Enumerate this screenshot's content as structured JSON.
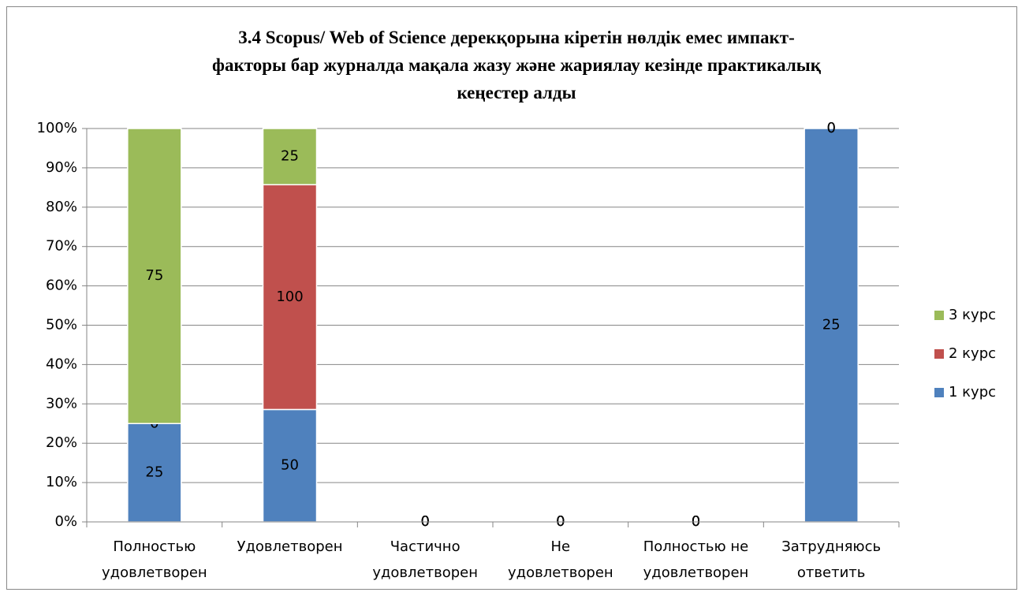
{
  "chart_data": {
    "type": "bar",
    "percent_stacked": true,
    "title": "3.4 Scopus/ Web of Science дерекқорына кіретін нөлдік емес импакт-\nфакторы бар журналда мақала жазу және жариялау кезінде практикалық\nкеңестер алды",
    "categories": [
      "Полностью\nудовлетворен",
      "Удовлетворен",
      "Частично\nудовлетворен",
      "Не\nудовлетворен",
      "Полностью не\nудовлетворен",
      "Затрудняюсь\nответить"
    ],
    "series": [
      {
        "name": "1 курс",
        "color": "#4f81bd",
        "values": [
          25,
          50,
          0,
          0,
          0,
          25
        ]
      },
      {
        "name": "2 курс",
        "color": "#c0504d",
        "values": [
          0,
          100,
          0,
          0,
          0,
          0
        ]
      },
      {
        "name": "3 курс",
        "color": "#9bbb59",
        "values": [
          75,
          25,
          0,
          0,
          0,
          0
        ]
      }
    ],
    "ylim": [
      0,
      100
    ],
    "yticks": [
      {
        "value": 0,
        "label": "0%"
      },
      {
        "value": 10,
        "label": "10%"
      },
      {
        "value": 20,
        "label": "20%"
      },
      {
        "value": 30,
        "label": "30%"
      },
      {
        "value": 40,
        "label": "40%"
      },
      {
        "value": 50,
        "label": "50%"
      },
      {
        "value": 60,
        "label": "60%"
      },
      {
        "value": 70,
        "label": "70%"
      },
      {
        "value": 80,
        "label": "80%"
      },
      {
        "value": 90,
        "label": "90%"
      },
      {
        "value": 100,
        "label": "100%"
      }
    ],
    "grid": true,
    "legend": "right"
  }
}
